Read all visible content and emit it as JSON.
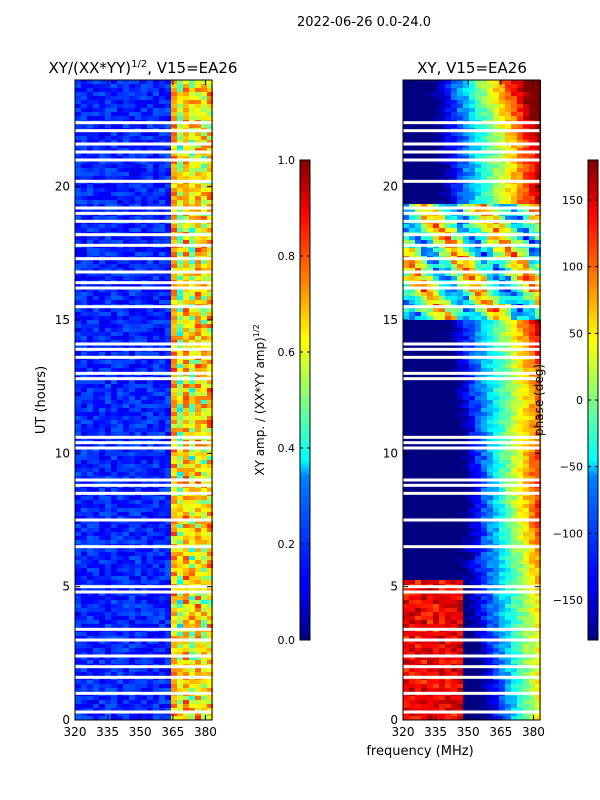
{
  "page_title": "2022-06-26 0.0-24.0",
  "chart_data": [
    {
      "type": "heatmap",
      "title": "XY/(XX*YY)$^{1/2}$, V15=EA26",
      "title_main": "XY/(XX*YY)",
      "title_sup": "1/2",
      "title_tail": ", V15=EA26",
      "xlabel": "",
      "ylabel": "UT (hours)",
      "xlim": [
        320,
        383
      ],
      "ylim": [
        0,
        24
      ],
      "xticks": [
        320,
        335,
        350,
        365,
        380
      ],
      "yticks": [
        0,
        5,
        10,
        15,
        20
      ],
      "colorbar": {
        "label_main": "XY amp. / (XX*YY amp)",
        "label_sup": "1/2",
        "range": [
          0.0,
          1.0
        ],
        "ticks": [
          0.0,
          0.2,
          0.4,
          0.6,
          0.8,
          1.0
        ],
        "tick_labels": [
          "0.0",
          "0.2",
          "0.4",
          "0.6",
          "0.8",
          "1.0"
        ],
        "colormap": "jet"
      },
      "flagged_hours": [
        0.3,
        1.0,
        1.6,
        2.0,
        2.4,
        3.0,
        3.4,
        4.8,
        5.0,
        6.5,
        7.5,
        8.5,
        8.8,
        9.0,
        10.2,
        10.4,
        10.6,
        12.8,
        13.0,
        13.6,
        13.9,
        14.1,
        15.5,
        16.2,
        16.4,
        16.8,
        17.3,
        17.8,
        18.2,
        18.7,
        19.0,
        19.2,
        20.2,
        21.0,
        21.3,
        21.6,
        22.1,
        22.4
      ]
    },
    {
      "type": "heatmap",
      "title": "XY, V15=EA26",
      "xlabel": "frequency (MHz)",
      "ylabel": "",
      "xlim": [
        320,
        383
      ],
      "ylim": [
        0,
        24
      ],
      "xticks": [
        320,
        335,
        350,
        365,
        380
      ],
      "yticks": [
        0,
        5,
        10,
        15,
        20
      ],
      "colorbar": {
        "label": "phase (deg)",
        "range": [
          -180,
          180
        ],
        "ticks": [
          -150,
          -100,
          -50,
          0,
          50,
          100,
          150
        ],
        "tick_labels": [
          "−150",
          "−100",
          "−50",
          "0",
          "50",
          "100",
          "150"
        ],
        "colormap": "jet"
      },
      "flagged_hours": [
        0.3,
        1.0,
        1.6,
        2.0,
        2.4,
        3.0,
        3.4,
        4.8,
        5.0,
        6.5,
        7.5,
        8.5,
        8.8,
        9.0,
        10.2,
        10.4,
        10.6,
        12.8,
        13.0,
        13.6,
        13.9,
        14.1,
        15.5,
        16.2,
        16.4,
        16.8,
        17.3,
        17.8,
        18.2,
        18.7,
        19.0,
        19.2,
        20.2,
        21.0,
        21.3,
        21.6,
        22.1,
        22.4
      ]
    }
  ]
}
